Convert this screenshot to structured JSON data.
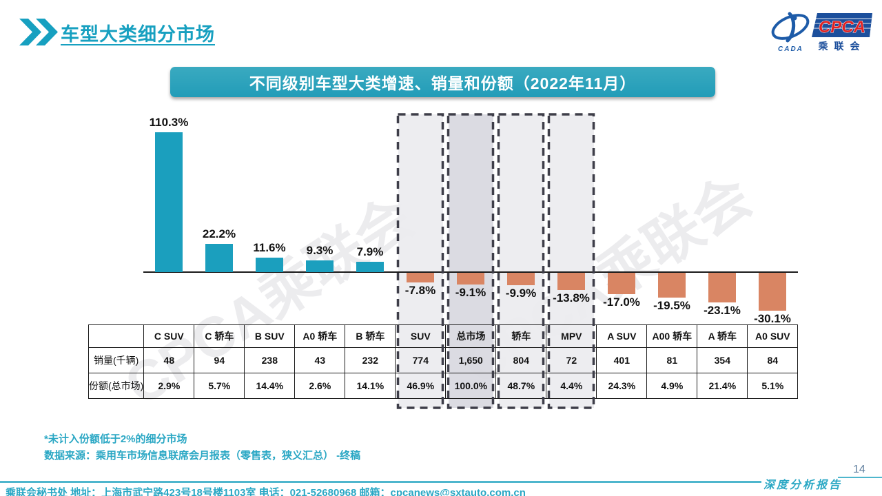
{
  "header": {
    "title": "车型大类细分市场"
  },
  "logo": {
    "cpca": "CPCA",
    "cada": "CADA",
    "name_cn": "乘联会"
  },
  "banner": {
    "title": "不同级别车型大类增速、销量和份额（2022年11月）"
  },
  "watermark": {
    "text": "CPCA乘联会"
  },
  "chart_data": {
    "type": "bar",
    "title": "不同级别车型大类增速、销量和份额（2022年11月）",
    "categories": [
      "C SUV",
      "C 轿车",
      "B SUV",
      "A0 轿车",
      "B 轿车",
      "SUV",
      "总市场",
      "轿车",
      "MPV",
      "A SUV",
      "A00 轿车",
      "A 轿车",
      "A0 SUV"
    ],
    "series": [
      {
        "name": "增速",
        "unit": "%",
        "values": [
          110.3,
          22.2,
          11.6,
          9.3,
          7.9,
          -7.8,
          -9.1,
          -9.9,
          -13.8,
          -17.0,
          -19.5,
          -23.1,
          -30.1
        ]
      }
    ],
    "highlighted_categories": [
      "SUV",
      "总市场",
      "轿车",
      "MPV"
    ],
    "positive_color": "#1B9FBE",
    "negative_color": "#D98563",
    "highlight_fill": "#ECECEF",
    "highlight_fill_dark": "#D8D8E0",
    "ylim": [
      -35,
      115
    ],
    "grid": false,
    "legend": "none"
  },
  "table": {
    "columns": [
      "C SUV",
      "C 轿车",
      "B SUV",
      "A0 轿车",
      "B 轿车",
      "SUV",
      "总市场",
      "轿车",
      "MPV",
      "A SUV",
      "A00 轿车",
      "A 轿车",
      "A0 SUV"
    ],
    "row_labels": [
      "销量(千辆)",
      "份额(总市场)"
    ],
    "rows": [
      [
        "48",
        "94",
        "238",
        "43",
        "232",
        "774",
        "1,650",
        "804",
        "72",
        "401",
        "81",
        "354",
        "84"
      ],
      [
        "2.9%",
        "5.7%",
        "14.4%",
        "2.6%",
        "14.1%",
        "46.9%",
        "100.0%",
        "48.7%",
        "4.4%",
        "24.3%",
        "4.9%",
        "21.4%",
        "5.1%"
      ]
    ]
  },
  "notes": {
    "note1": "*未计入份额低于2%的细分市场",
    "note2": "数据来源：乘用车市场信息联席会月报表（零售表，狭义汇总） -终稿"
  },
  "footer": {
    "contact": "乘联会秘书处  地址：上海市武宁路423号18号楼1103室  电话：021-52680968  邮箱：cpcanews@sxtauto.com.cn",
    "report_label": "深度分析报告",
    "page_number": "14"
  }
}
